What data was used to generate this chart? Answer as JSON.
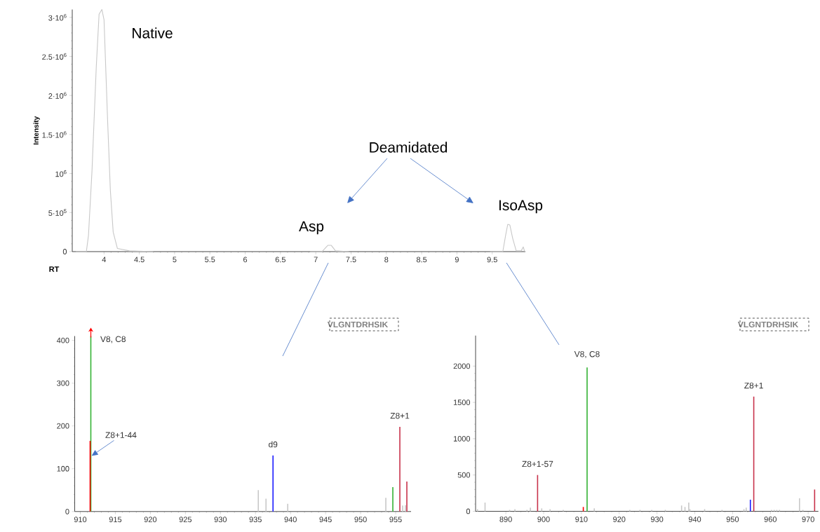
{
  "chart_data": [
    {
      "type": "line",
      "xlabel": "RT",
      "ylabel": "Intensity",
      "xlim": [
        3.55,
        9.97
      ],
      "ylim": [
        0,
        3100000
      ],
      "xticks": [
        4,
        4.5,
        5,
        5.5,
        6,
        6.5,
        7,
        7.5,
        8,
        8.5,
        9,
        9.5
      ],
      "yticks": [
        0,
        {
          "value": 500000,
          "label": "5·10$^{5}$"
        },
        {
          "value": 1000000,
          "label": "10$^{6}$"
        },
        {
          "value": 1500000,
          "label": "1.5·10$^{6}$"
        },
        {
          "value": 2000000,
          "label": "2·10$^{6}$"
        },
        {
          "value": 2500000,
          "label": "2.5·10$^{6}$"
        },
        {
          "value": 3000000,
          "label": "3·10$^{6}$"
        }
      ],
      "line_style": "solid",
      "x": [
        3.6,
        3.75,
        3.78,
        3.83,
        3.89,
        3.93,
        3.97,
        4.0,
        4.05,
        4.09,
        4.13,
        4.19,
        4.36,
        4.7,
        5.8,
        6.92,
        7.09,
        7.17,
        7.22,
        7.28,
        7.47,
        8.5,
        9.47,
        9.65,
        9.69,
        9.72,
        9.75,
        9.79,
        9.84,
        9.91,
        9.94,
        9.96
      ],
      "series": [
        {
          "color": "#c8c8c8",
          "values": [
            0,
            0,
            210000,
            1040000,
            2360000,
            3040000,
            3100000,
            2970000,
            1700000,
            780000,
            250000,
            40000,
            10000,
            0,
            null,
            0,
            0,
            80000,
            80000,
            10000,
            0,
            null,
            0,
            0,
            210000,
            350000,
            340000,
            170000,
            10000,
            10000,
            60000,
            0
          ]
        }
      ],
      "annotations": [
        "Native",
        "Deamidated",
        "Asp",
        "IsoAsp"
      ]
    },
    {
      "type": "bar",
      "xlim": [
        909.2,
        957.2
      ],
      "ylim": [
        0,
        410
      ],
      "xticks": [
        910,
        915,
        920,
        925,
        930,
        935,
        940,
        945,
        950,
        955
      ],
      "yticks": [
        0,
        100,
        200,
        300,
        400
      ],
      "series": [
        {
          "color": "#c8c8c8",
          "x": [
            935.4,
            936.5,
            939.6,
            953.6,
            956.0,
            956.4
          ],
          "values": [
            50,
            30,
            18,
            32,
            14,
            15
          ]
        },
        {
          "color": "#33b233",
          "x": [
            911.5,
            954.6
          ],
          "values": [
            410,
            57
          ]
        },
        {
          "color": "#ff0000",
          "x": [
            911.4
          ],
          "values": [
            165
          ]
        },
        {
          "color": "#1a1aff",
          "x": [
            937.5
          ],
          "values": [
            131
          ]
        },
        {
          "color": "#c8324b",
          "x": [
            955.6,
            956.6
          ],
          "values": [
            198,
            70
          ]
        }
      ],
      "annotations": [
        {
          "text": "V8, C8",
          "x": 911.5,
          "y": 410
        },
        {
          "text": "Z8+1-44",
          "x": 911.4,
          "y": 130
        },
        {
          "text": "d9",
          "x": 937.5,
          "y": 131
        },
        {
          "text": "Z8+1",
          "x": 955.6,
          "y": 198
        },
        "VLGNTDRHSIK"
      ]
    },
    {
      "type": "bar",
      "xlim": [
        882,
        972.7
      ],
      "ylim": [
        0,
        2420
      ],
      "xticks": [
        890,
        900,
        910,
        920,
        930,
        940,
        950,
        960,
        970
      ],
      "yticks": [
        0,
        500,
        1000,
        1500,
        2000
      ],
      "series": [
        {
          "color": "#c8c8c8",
          "x": [
            882.5,
            884.5,
            891.0,
            892.4,
            895.6,
            896.5,
            899.5,
            901.7,
            905.2,
            913.4,
            922.8,
            925.5,
            928.6,
            932.2,
            936.5,
            937.4,
            938.4,
            938.7,
            942.6,
            947.2,
            953.0,
            953.6,
            960.3,
            961.0,
            961.7,
            962.4,
            967.7,
            968.6
          ],
          "values": [
            30,
            120,
            20,
            30,
            20,
            50,
            40,
            30,
            20,
            40,
            20,
            20,
            20,
            20,
            80,
            60,
            120,
            30,
            30,
            20,
            30,
            50,
            20,
            20,
            20,
            20,
            180,
            20
          ]
        },
        {
          "color": "#ff0000",
          "x": [
            910.5
          ],
          "values": [
            60
          ]
        },
        {
          "color": "#33b233",
          "x": [
            911.5
          ],
          "values": [
            1980
          ]
        },
        {
          "color": "#1a1aff",
          "x": [
            954.7
          ],
          "values": [
            160
          ]
        },
        {
          "color": "#c8324b",
          "x": [
            898.4,
            955.6,
            971.7
          ],
          "values": [
            500,
            1580,
            300
          ]
        }
      ],
      "annotations": [
        {
          "text": "Z8+1-57",
          "x": 898.4,
          "y": 500
        },
        {
          "text": "V8, C8",
          "x": 911.5,
          "y": 1980
        },
        {
          "text": "Z8+1",
          "x": 955.6,
          "y": 1580
        },
        "VLGNTDRHSIK"
      ]
    }
  ]
}
